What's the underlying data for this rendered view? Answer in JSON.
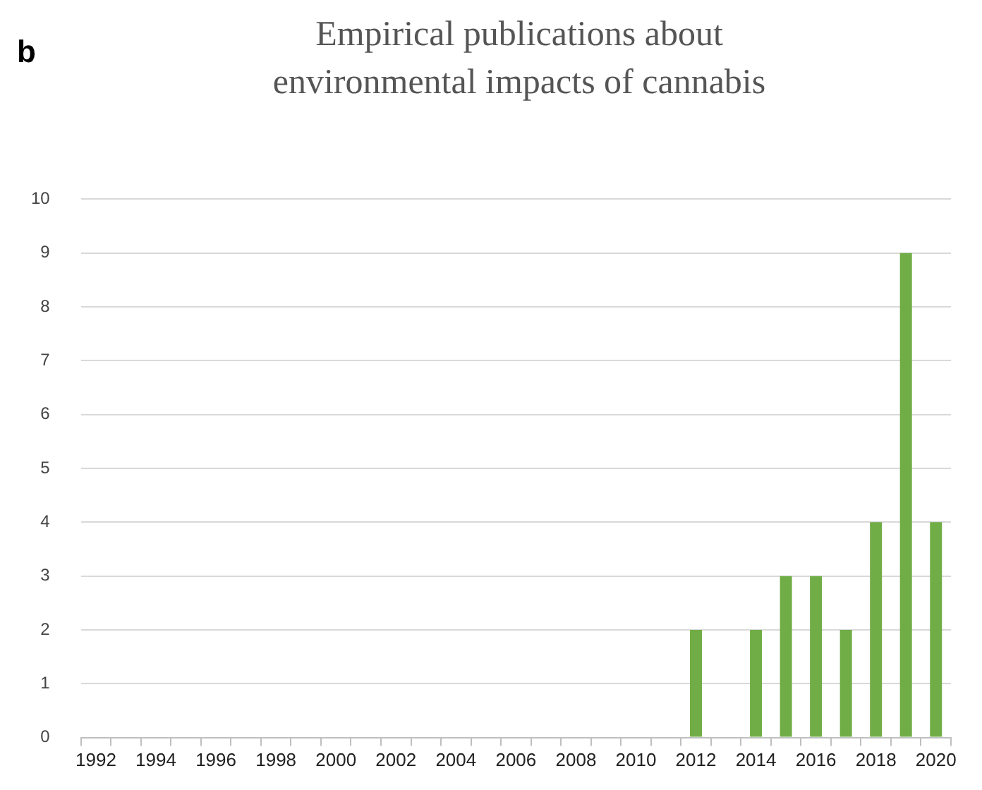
{
  "chart_data": {
    "type": "bar",
    "title": "Empirical publications about environmental impacts of cannabis",
    "annotations": [
      "b"
    ],
    "categories": [
      "1992",
      null,
      "1994",
      null,
      "1996",
      null,
      "1998",
      null,
      "2000",
      null,
      "2002",
      null,
      "2004",
      null,
      "2006",
      null,
      "2008",
      null,
      "2010",
      null,
      "2012",
      null,
      "2014",
      null,
      "2016",
      null,
      "2018",
      null,
      "2020"
    ],
    "values": [
      0,
      0,
      0,
      0,
      0,
      0,
      0,
      0,
      0,
      0,
      0,
      0,
      0,
      0,
      0,
      0,
      0,
      0,
      0,
      0,
      2,
      0,
      2,
      3,
      3,
      2,
      4,
      9,
      4
    ],
    "color": "#70ad47",
    "ylim": [
      0,
      10
    ],
    "yticks": [
      0,
      1,
      2,
      3,
      4,
      5,
      6,
      7,
      8,
      9,
      10
    ],
    "grid": "y",
    "legend": false
  }
}
